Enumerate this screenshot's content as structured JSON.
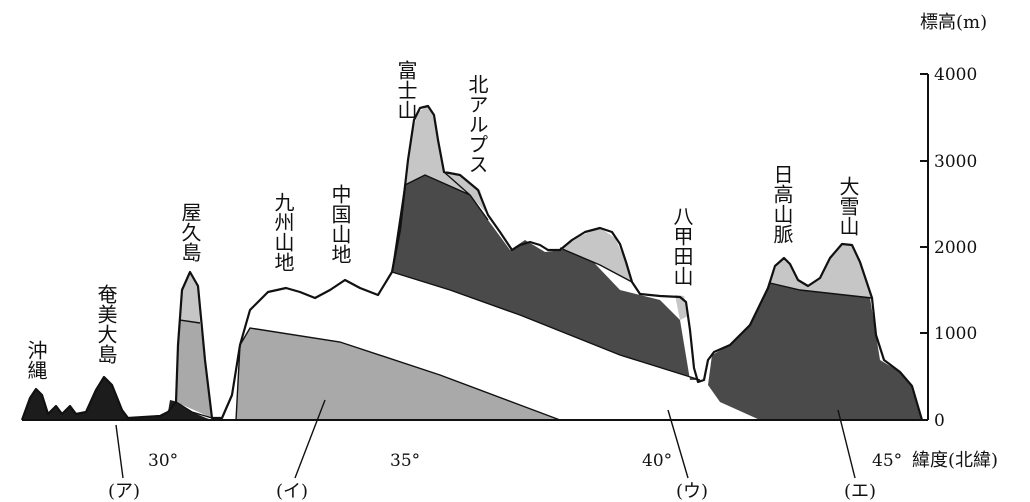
{
  "axis": {
    "y_title": "標高(m)",
    "y_ticks": [
      "4000",
      "3000",
      "2000",
      "1000",
      "0"
    ],
    "x_title": "緯度(北緯)",
    "x_ticks": [
      "30°",
      "35°",
      "40°",
      "45°"
    ]
  },
  "peaks": {
    "okinawa": "沖縄",
    "amami": "奄美大島",
    "yakushima": "屋久島",
    "kyushu": "九州山地",
    "chugoku": "中国山地",
    "fuji": "富士山",
    "kita_alps": "北アルプス",
    "hakkoda": "八甲田山",
    "hidaka": "日高山脈",
    "taisetsu": "大雪山"
  },
  "zones": {
    "a": "(ア)",
    "i": "(イ)",
    "u": "(ウ)",
    "e": "(エ)"
  },
  "colors": {
    "zone_a": "#1c1c1c",
    "zone_i": "#a9a9a9",
    "zone_u": "#ffffff",
    "zone_e": "#4a4a4a",
    "alpine": "#c6c6c6"
  }
}
